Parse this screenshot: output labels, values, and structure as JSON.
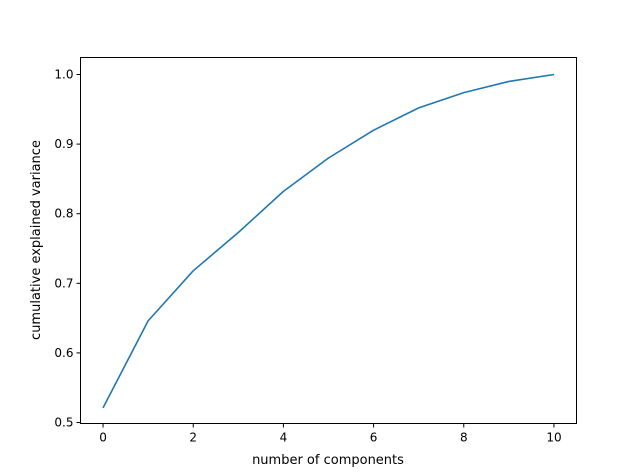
{
  "chart_data": {
    "type": "line",
    "title": "",
    "xlabel": "number of components",
    "ylabel": "cumulative explained variance",
    "x": [
      0,
      1,
      2,
      3,
      4,
      5,
      6,
      7,
      8,
      9,
      10
    ],
    "series": [
      {
        "values": [
          0.521,
          0.646,
          0.718,
          0.773,
          0.832,
          0.88,
          0.92,
          0.952,
          0.974,
          0.99,
          1.0
        ],
        "color": "#1f77b4"
      }
    ],
    "xlim": [
      -0.5,
      10.5
    ],
    "ylim": [
      0.4986,
      1.0244
    ],
    "xticks": [
      "0",
      "2",
      "4",
      "6",
      "8",
      "10"
    ],
    "yticks": [
      "0.5",
      "0.6",
      "0.7",
      "0.8",
      "0.9",
      "1.0"
    ],
    "grid": false
  }
}
